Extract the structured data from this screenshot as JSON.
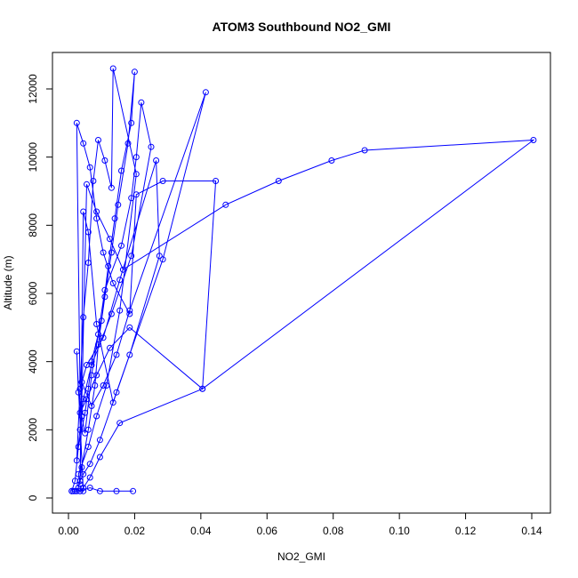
{
  "chart_data": {
    "type": "line",
    "title": "ATOM3 Southbound NO2_GMI",
    "xlabel": "NO2_GMI",
    "ylabel": "Altitude (m)",
    "xlim": [
      0,
      0.14
    ],
    "ylim": [
      0,
      12000
    ],
    "x_ticks": [
      0.0,
      0.02,
      0.04,
      0.06,
      0.08,
      0.1,
      0.12,
      0.14
    ],
    "x_tick_labels": [
      "0.00",
      "0.02",
      "0.04",
      "0.06",
      "0.08",
      "0.10",
      "0.12",
      "0.14"
    ],
    "y_ticks": [
      0,
      2000,
      4000,
      6000,
      8000,
      10000,
      12000
    ],
    "y_tick_labels": [
      "0",
      "2000",
      "4000",
      "6000",
      "8000",
      "10000",
      "12000"
    ],
    "grid": false,
    "legend": "none",
    "colors": {
      "series": "#0000ff",
      "axes": "#000000"
    },
    "series": [
      {
        "x": [
          0.001,
          0.002,
          0.003,
          0.005,
          0.006,
          0.007,
          0.01,
          0.012,
          0.014,
          0.016,
          0.019,
          0.02,
          0.018,
          0.015,
          0.013,
          0.011,
          0.009,
          0.008,
          0.006,
          0.004,
          0.003,
          0.002,
          0.001,
          0.0015,
          0.0025,
          0.0035,
          0.0045,
          0.0025,
          0.003,
          0.004,
          0.005,
          0.007,
          0.009,
          0.011,
          0.016,
          0.019,
          0.0205,
          0.022,
          0.025,
          0.019,
          0.013,
          0.007,
          0.0045,
          0.0035,
          0.0025,
          0.0045,
          0.006,
          0.0075,
          0.009,
          0.011,
          0.013,
          0.0135,
          0.0205,
          0.0155,
          0.0115,
          0.0085,
          0.006,
          0.003,
          0.0035,
          0.0045,
          0.006,
          0.0085,
          0.0135,
          0.0185,
          0.0275,
          0.0265,
          0.0155,
          0.0105,
          0.0055,
          0.0035,
          0.0025,
          0.0045,
          0.0065,
          0.0085,
          0.0105,
          0.0135,
          0.0185,
          0.0205,
          0.0285,
          0.0445,
          0.0405,
          0.0185,
          0.0125,
          0.0085,
          0.0055,
          0.0035,
          0.004,
          0.007,
          0.0105,
          0.0145,
          0.0185,
          0.0415,
          0.0285,
          0.0145,
          0.0095,
          0.0065,
          0.0045,
          0.0035,
          0.0055,
          0.0085,
          0.0125,
          0.0165,
          0.0475,
          0.0635,
          0.0795,
          0.0895,
          0.1405,
          0.0405,
          0.0155,
          0.0095,
          0.0065,
          0.0045,
          0.0035,
          0.0065,
          0.0095,
          0.0145,
          0.0195
        ],
        "y": [
          200,
          500,
          1500,
          2500,
          3200,
          4000,
          5200,
          6800,
          8200,
          9600,
          11000,
          12500,
          10400,
          8600,
          7200,
          5900,
          4500,
          3300,
          2000,
          900,
          300,
          200,
          200,
          200,
          200,
          200,
          200,
          4300,
          3100,
          2400,
          1900,
          3600,
          4800,
          6100,
          7400,
          8800,
          10000,
          11600,
          10300,
          7100,
          5400,
          3900,
          2900,
          2000,
          1100,
          5300,
          6900,
          9300,
          10500,
          9900,
          9100,
          12600,
          9500,
          5500,
          3300,
          2400,
          1500,
          700,
          400,
          8400,
          7800,
          5100,
          2800,
          4200,
          7100,
          9900,
          6400,
          4700,
          3900,
          3200,
          11000,
          10400,
          9700,
          8200,
          7200,
          6300,
          5400,
          8900,
          9300,
          9300,
          3200,
          5000,
          4400,
          3600,
          2900,
          2500,
          3400,
          2700,
          3300,
          4200,
          5500,
          11900,
          7000,
          3100,
          1700,
          1000,
          700,
          500,
          9200,
          8400,
          7600,
          6700,
          8600,
          9300,
          9900,
          10200,
          10500,
          3200,
          2200,
          1200,
          600,
          300,
          200,
          300,
          200,
          200,
          200
        ]
      }
    ]
  }
}
